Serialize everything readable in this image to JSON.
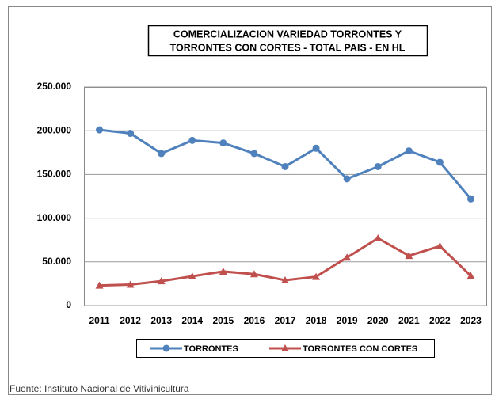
{
  "chart_data": {
    "type": "line",
    "title": [
      "COMERCIALIZACION VARIEDAD TORRONTES  Y",
      "TORRONTES CON CORTES - TOTAL PAIS - EN HL"
    ],
    "categories": [
      "2011",
      "2012",
      "2013",
      "2014",
      "2015",
      "2016",
      "2017",
      "2018",
      "2019",
      "2020",
      "2021",
      "2022",
      "2023"
    ],
    "series": [
      {
        "name": "TORRONTES",
        "color": "#4f81bd",
        "values": [
          201000,
          197000,
          174000,
          189000,
          186000,
          174000,
          159000,
          180000,
          145000,
          159000,
          177000,
          164000,
          122000
        ]
      },
      {
        "name": "TORRONTES CON CORTES",
        "color": "#c0504d",
        "values": [
          23000,
          24000,
          28000,
          33500,
          39000,
          36000,
          29000,
          33000,
          55000,
          77000,
          57000,
          68000,
          34000
        ]
      }
    ],
    "ylim": [
      0,
      250000
    ],
    "yticks": [
      0,
      {
        "value": 50000,
        "label": "50.000"
      },
      {
        "value": 100000,
        "label": "100.000"
      },
      {
        "value": 150000,
        "label": "150.000"
      },
      {
        "value": 200000,
        "label": "200.000"
      },
      {
        "value": 250000,
        "label": "250.000"
      }
    ],
    "grid": true,
    "legend": "bottom",
    "source": "Fuente: Instituto Nacional de Vitivinicultura"
  }
}
